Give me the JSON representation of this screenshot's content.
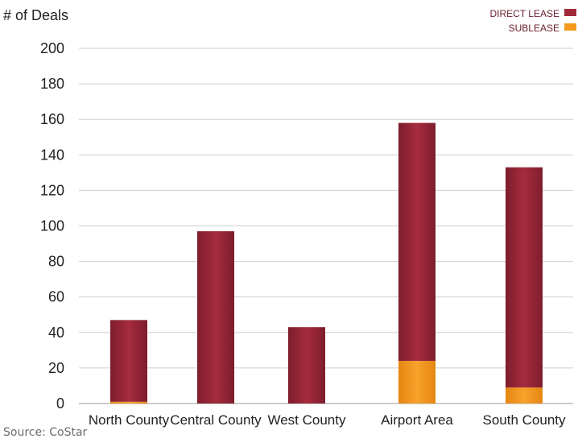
{
  "chart_data": {
    "type": "bar",
    "stacked": true,
    "ylabel": "# of Deals",
    "ylim": [
      0,
      200
    ],
    "yticks": [
      0,
      20,
      40,
      60,
      80,
      100,
      120,
      140,
      160,
      180,
      200
    ],
    "grid": true,
    "legend_position": "top-right",
    "categories": [
      "North County",
      "Central County",
      "West County",
      "Airport Area",
      "South County"
    ],
    "series": [
      {
        "name": "SUBLEASE",
        "color": "#f39a1e",
        "values": [
          1,
          0,
          0,
          24,
          9
        ]
      },
      {
        "name": "DIRECT LEASE",
        "color": "#a32a3b",
        "values": [
          46,
          97,
          43,
          134,
          124
        ]
      }
    ]
  },
  "source": "Source: CoStar"
}
